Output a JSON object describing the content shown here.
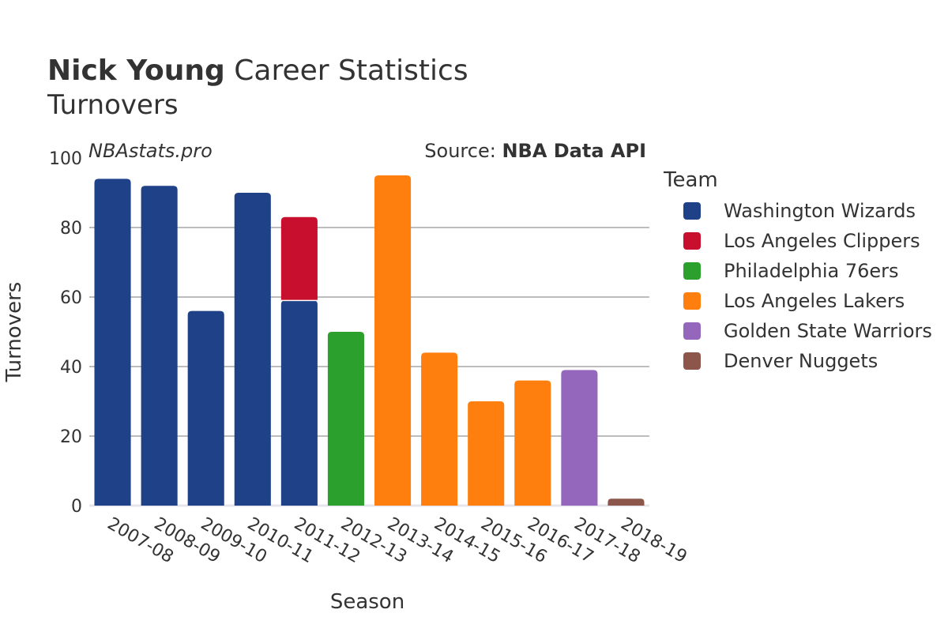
{
  "title": {
    "bold": "Nick Young",
    "rest": " Career Statistics",
    "subtitle": "Turnovers"
  },
  "watermark": "NBAstats.pro",
  "source": {
    "prefix": "Source: ",
    "name": "NBA Data API"
  },
  "chart_data": {
    "type": "bar",
    "stacked": true,
    "categories": [
      "2007-08",
      "2008-09",
      "2009-10",
      "2010-11",
      "2011-12",
      "2012-13",
      "2013-14",
      "2014-15",
      "2015-16",
      "2016-17",
      "2017-18",
      "2018-19"
    ],
    "series": [
      {
        "name": "Washington Wizards",
        "color": "#1f4187",
        "values": [
          94,
          92,
          56,
          90,
          59,
          0,
          0,
          0,
          0,
          0,
          0,
          0
        ]
      },
      {
        "name": "Los Angeles Clippers",
        "color": "#c8102e",
        "values": [
          0,
          0,
          0,
          0,
          24,
          0,
          0,
          0,
          0,
          0,
          0,
          0
        ]
      },
      {
        "name": "Philadelphia 76ers",
        "color": "#2ca02c",
        "values": [
          0,
          0,
          0,
          0,
          0,
          50,
          0,
          0,
          0,
          0,
          0,
          0
        ]
      },
      {
        "name": "Los Angeles Lakers",
        "color": "#ff7f0e",
        "values": [
          0,
          0,
          0,
          0,
          0,
          0,
          95,
          44,
          30,
          36,
          0,
          0
        ]
      },
      {
        "name": "Golden State Warriors",
        "color": "#9467bd",
        "values": [
          0,
          0,
          0,
          0,
          0,
          0,
          0,
          0,
          0,
          0,
          39,
          0
        ]
      },
      {
        "name": "Denver Nuggets",
        "color": "#8c564b",
        "values": [
          0,
          0,
          0,
          0,
          0,
          0,
          0,
          0,
          0,
          0,
          0,
          2
        ]
      }
    ],
    "xlabel": "Season",
    "ylabel": "Turnovers",
    "ylim": [
      0,
      100
    ],
    "yticks": [
      0,
      20,
      40,
      60,
      80,
      100
    ],
    "grid": true,
    "legend": {
      "title": "Team",
      "position": "right"
    }
  }
}
